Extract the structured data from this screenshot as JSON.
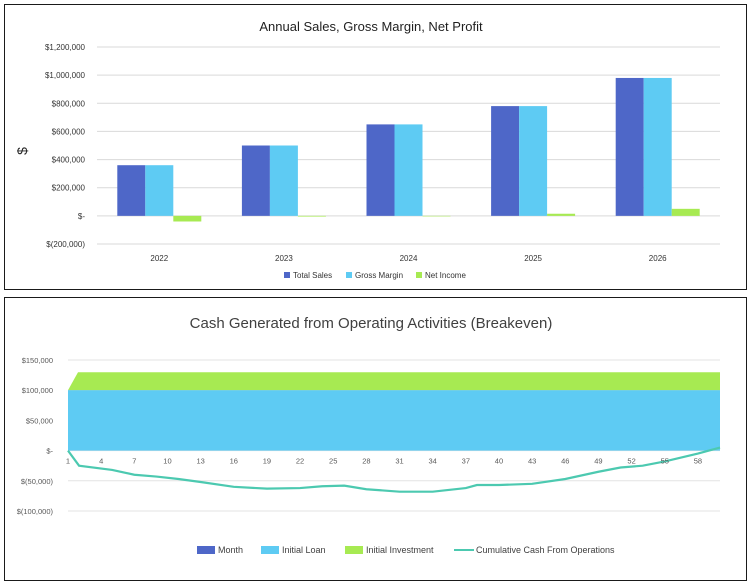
{
  "charts": [
    {
      "chart_data": {
        "type": "bar",
        "title": "Annual Sales, Gross Margin, Net Profit",
        "ylabel": "$",
        "xlabel": "",
        "categories": [
          "2022",
          "2023",
          "2024",
          "2025",
          "2026"
        ],
        "series": [
          {
            "name": "Total Sales",
            "values": [
              360000,
              500000,
              650000,
              780000,
              980000
            ],
            "color": "#4e67c8"
          },
          {
            "name": "Gross Margin",
            "values": [
              360000,
              500000,
              650000,
              780000,
              980000
            ],
            "color": "#5ecbf3"
          },
          {
            "name": "Net Income",
            "values": [
              -40000,
              -5000,
              -2000,
              15000,
              50000
            ],
            "color": "#a7ea52"
          }
        ],
        "ylim": [
          -200000,
          1200000
        ],
        "yticks": [
          1200000,
          1000000,
          800000,
          600000,
          400000,
          200000,
          0,
          -200000
        ],
        "ytick_labels": [
          "$1,200,000",
          "$1,000,000",
          "$800,000",
          "$600,000",
          "$400,000",
          "$200,000",
          "$-",
          "$(200,000)"
        ],
        "legend": "bottom",
        "grid": true
      }
    },
    {
      "chart_data": {
        "type": "area",
        "title": "Cash Generated from Operating Activities (Breakeven)",
        "xlabel": "",
        "ylabel": "",
        "xlim": [
          1,
          60
        ],
        "ylim": [
          -100000,
          150000
        ],
        "xticks": [
          1,
          4,
          7,
          10,
          13,
          16,
          19,
          22,
          25,
          28,
          31,
          34,
          37,
          40,
          43,
          46,
          49,
          52,
          55,
          58
        ],
        "xtick_labels": [
          "1",
          "4",
          "7",
          "10",
          "13",
          "16",
          "19",
          "22",
          "25",
          "28",
          "31",
          "34",
          "37",
          "40",
          "43",
          "46",
          "49",
          "52",
          "55",
          "58"
        ],
        "yticks": [
          150000,
          100000,
          50000,
          0,
          -50000,
          -100000
        ],
        "ytick_labels": [
          "$150,000",
          "$100,000",
          "$50,000",
          "$-",
          "$(50,000)",
          "$(100,000)"
        ],
        "series": [
          {
            "name": "Month",
            "kind": "legend-only",
            "color": "#4e67c8"
          },
          {
            "name": "Initial Loan",
            "kind": "area",
            "value": 100000,
            "color": "#5ecbf3"
          },
          {
            "name": "Initial Investment",
            "kind": "area-stacked",
            "value": 30000,
            "color": "#a7ea52"
          },
          {
            "name": "Cumulative Cash From Operations",
            "kind": "line",
            "color": "#4cc9b0",
            "points": [
              [
                1,
                0
              ],
              [
                2,
                -25000
              ],
              [
                5,
                -32000
              ],
              [
                7,
                -40000
              ],
              [
                9,
                -43000
              ],
              [
                11,
                -47000
              ],
              [
                13,
                -52000
              ],
              [
                16,
                -60000
              ],
              [
                19,
                -63000
              ],
              [
                22,
                -62000
              ],
              [
                24,
                -59000
              ],
              [
                26,
                -58000
              ],
              [
                28,
                -64000
              ],
              [
                31,
                -68000
              ],
              [
                34,
                -68000
              ],
              [
                37,
                -62000
              ],
              [
                38,
                -57000
              ],
              [
                40,
                -57000
              ],
              [
                43,
                -55000
              ],
              [
                46,
                -47000
              ],
              [
                49,
                -35000
              ],
              [
                51,
                -28000
              ],
              [
                53,
                -25000
              ],
              [
                55,
                -18000
              ],
              [
                58,
                -5000
              ],
              [
                60,
                5000
              ]
            ]
          }
        ],
        "legend": "bottom",
        "grid": true
      }
    }
  ]
}
